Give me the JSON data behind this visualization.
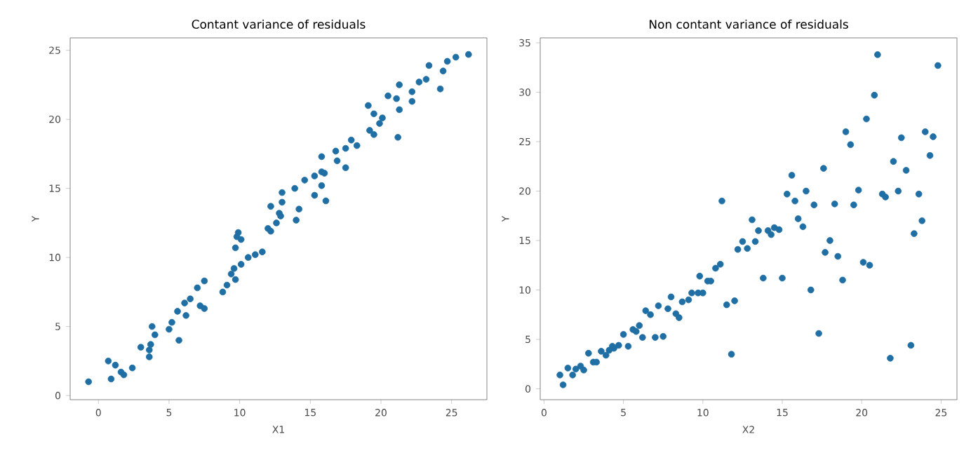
{
  "chart_data": [
    {
      "type": "scatter",
      "title": "Contant variance of residuals",
      "xlabel": "X1",
      "ylabel": "Y",
      "color": "#1f6fa5",
      "marker": "circle",
      "grid": false,
      "xlim": [
        -2,
        27.5
      ],
      "ylim": [
        -0.3,
        25.9
      ],
      "xticks": [
        0,
        5,
        10,
        15,
        20,
        25
      ],
      "yticks": [
        0,
        5,
        10,
        15,
        20,
        25
      ],
      "x": [
        -0.7,
        0.7,
        0.9,
        1.2,
        1.6,
        1.8,
        2.4,
        3.0,
        3.6,
        3.6,
        3.7,
        3.8,
        4.0,
        5.0,
        5.2,
        5.6,
        5.7,
        6.1,
        6.2,
        6.5,
        7.0,
        7.2,
        7.5,
        7.5,
        8.8,
        9.1,
        9.4,
        9.6,
        9.7,
        9.7,
        9.8,
        9.9,
        10.1,
        10.1,
        10.6,
        11.1,
        11.6,
        12.0,
        12.2,
        12.2,
        12.6,
        12.8,
        12.9,
        13.0,
        13.0,
        13.9,
        14.0,
        14.2,
        14.6,
        15.3,
        15.3,
        15.8,
        15.8,
        15.8,
        16.1,
        16.0,
        16.8,
        16.9,
        17.5,
        17.5,
        17.9,
        18.3,
        19.1,
        19.2,
        19.5,
        19.5,
        19.9,
        20.1,
        20.5,
        21.1,
        21.3,
        21.3,
        21.2,
        22.2,
        22.2,
        22.7,
        23.2,
        23.4,
        24.2,
        24.4,
        24.7,
        25.3,
        26.2
      ],
      "values": [
        1.0,
        2.5,
        1.2,
        2.2,
        1.7,
        1.5,
        2.0,
        3.5,
        2.8,
        3.3,
        3.7,
        5.0,
        4.4,
        4.8,
        5.3,
        6.1,
        4.0,
        6.7,
        5.8,
        7.0,
        7.8,
        6.5,
        8.3,
        6.3,
        7.5,
        8.0,
        8.8,
        9.2,
        8.4,
        10.7,
        11.5,
        11.8,
        9.5,
        11.3,
        10.0,
        10.2,
        10.4,
        12.1,
        13.7,
        11.9,
        12.5,
        13.2,
        13.0,
        14.7,
        14.0,
        15.0,
        12.7,
        13.5,
        15.6,
        15.9,
        14.5,
        17.3,
        16.2,
        15.2,
        14.1,
        16.1,
        17.7,
        17.0,
        17.9,
        16.5,
        18.5,
        18.1,
        21.0,
        19.2,
        18.9,
        20.4,
        19.7,
        20.1,
        21.7,
        21.5,
        22.5,
        20.7,
        18.7,
        22.0,
        21.3,
        22.7,
        22.9,
        23.9,
        22.2,
        23.5,
        24.2,
        24.5,
        24.7
      ]
    },
    {
      "type": "scatter",
      "title": "Non contant variance of residuals",
      "xlabel": "X2",
      "ylabel": "Y",
      "color": "#1f6fa5",
      "marker": "circle",
      "grid": false,
      "xlim": [
        -0.24,
        26.0
      ],
      "ylim": [
        -1.1,
        35.5
      ],
      "xticks": [
        0,
        5,
        10,
        15,
        20,
        25
      ],
      "yticks": [
        0,
        5,
        10,
        15,
        20,
        25,
        30,
        35
      ],
      "x": [
        1.0,
        1.2,
        1.5,
        1.8,
        2.0,
        2.3,
        2.5,
        2.8,
        3.1,
        3.3,
        3.6,
        3.9,
        4.1,
        4.3,
        4.4,
        4.7,
        5.0,
        5.3,
        5.6,
        5.8,
        6.0,
        6.2,
        6.4,
        6.7,
        7.0,
        7.2,
        7.5,
        7.8,
        8.0,
        8.3,
        8.5,
        8.7,
        9.1,
        9.3,
        9.7,
        9.8,
        10.0,
        10.3,
        10.5,
        10.8,
        11.1,
        11.2,
        11.5,
        11.8,
        12.0,
        12.2,
        12.5,
        12.8,
        13.1,
        13.3,
        13.5,
        13.8,
        14.1,
        14.3,
        14.5,
        14.8,
        15.0,
        15.3,
        15.6,
        15.8,
        16.0,
        16.3,
        16.5,
        16.8,
        17.0,
        17.3,
        17.6,
        17.7,
        18.0,
        18.3,
        18.5,
        18.8,
        19.0,
        19.3,
        19.5,
        19.8,
        20.1,
        20.3,
        20.5,
        20.8,
        21.0,
        21.3,
        21.5,
        21.8,
        22.0,
        22.3,
        22.5,
        22.8,
        23.1,
        23.3,
        23.6,
        23.8,
        24.0,
        24.3,
        24.5,
        24.8
      ],
      "values": [
        1.4,
        0.4,
        2.1,
        1.4,
        2.0,
        2.3,
        1.9,
        3.6,
        2.7,
        2.7,
        3.8,
        3.4,
        3.9,
        4.3,
        4.1,
        4.4,
        5.5,
        4.3,
        6.0,
        5.8,
        6.4,
        5.2,
        7.9,
        7.5,
        5.2,
        8.4,
        5.3,
        8.1,
        9.3,
        7.6,
        7.2,
        8.8,
        9.0,
        9.7,
        9.7,
        11.4,
        9.7,
        10.9,
        10.9,
        12.2,
        12.6,
        19.0,
        8.5,
        3.5,
        8.9,
        14.1,
        14.9,
        14.2,
        17.1,
        14.9,
        16.0,
        11.2,
        16.0,
        15.6,
        16.3,
        16.1,
        11.2,
        19.7,
        21.6,
        19.0,
        17.2,
        16.4,
        20.0,
        10.0,
        18.6,
        5.6,
        22.3,
        13.8,
        15.0,
        18.7,
        13.4,
        11.0,
        26.0,
        24.7,
        18.6,
        20.1,
        12.8,
        27.3,
        12.5,
        29.7,
        33.8,
        19.7,
        19.4,
        3.1,
        23.0,
        20.0,
        25.4,
        22.1,
        4.4,
        15.7,
        19.7,
        17.0,
        26.0,
        23.6,
        25.5,
        32.7
      ]
    }
  ]
}
